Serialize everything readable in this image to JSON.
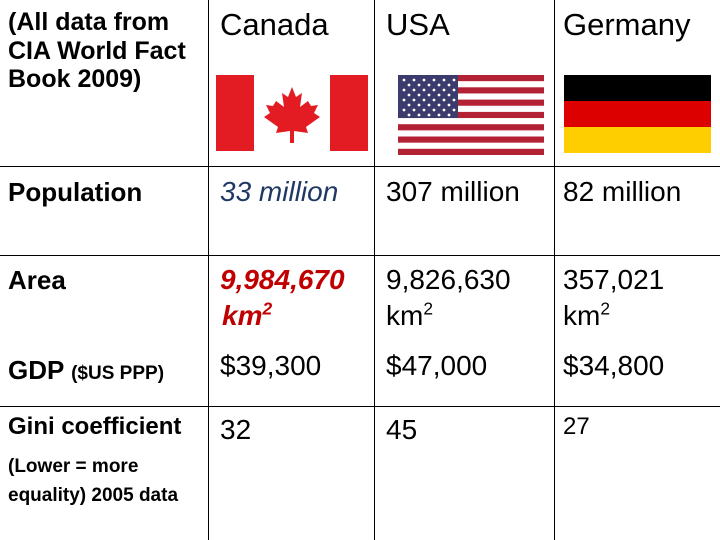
{
  "header": {
    "note_lines": [
      "(All data from",
      "CIA World Fact",
      "Book 2009)"
    ],
    "countries": [
      "Canada",
      "USA",
      "Germany"
    ]
  },
  "flags": {
    "canada": "canada-flag-icon",
    "usa": "usa-flag-icon",
    "germany": "germany-flag-icon"
  },
  "rows": {
    "population": {
      "label": "Population",
      "canada": "33 million",
      "usa": "307 million",
      "germany": "82 million"
    },
    "area": {
      "label": "Area",
      "canada": "9,984,670",
      "usa": "9,826,630",
      "germany": "357,021",
      "unit": "km",
      "unit_exp": "2"
    },
    "gdp": {
      "label": "GDP",
      "label_note": "($US PPP)",
      "canada": "$39,300",
      "usa": "$47,000",
      "germany": "$34,800"
    },
    "gini": {
      "label": "Gini coefficient",
      "note_lines": [
        "(Lower = more",
        "equality) 2005 data"
      ],
      "canada": "32",
      "usa": "45",
      "germany": "27"
    }
  },
  "colors": {
    "canada_population": "#1f3864",
    "canada_area": "#c00000",
    "canada_red": "#e31b23",
    "usa_red": "#b22234",
    "usa_blue": "#3c3b6e",
    "germany_black": "#000000",
    "germany_red": "#dd0000",
    "germany_gold": "#ffce00"
  }
}
